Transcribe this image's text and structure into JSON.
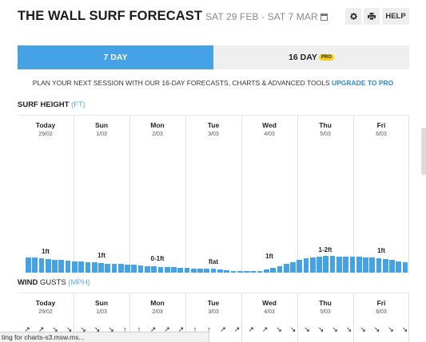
{
  "header": {
    "title": "THE WALL SURF FORECAST",
    "date_range": "SAT 29 FEB - SAT 7 MAR",
    "settings_icon": "gear-icon",
    "print_icon": "printer-icon",
    "help_label": "HELP"
  },
  "tabs": [
    {
      "label": "7 DAY",
      "active": true
    },
    {
      "label": "16 DAY",
      "badge": "PRO",
      "active": false
    }
  ],
  "promo": {
    "text": "PLAN YOUR NEXT SESSION WITH OUR 16-DAY FORECASTS, CHARTS & ADVANCED TOOLS",
    "link": "UPGRADE TO PRO"
  },
  "surf": {
    "title": "SURF HEIGHT",
    "unit": "(FT)",
    "days": [
      {
        "name": "Today",
        "date": "29/02",
        "label": "1ft"
      },
      {
        "name": "Sun",
        "date": "1/03",
        "label": "1ft"
      },
      {
        "name": "Mon",
        "date": "2/03",
        "label": "0-1ft"
      },
      {
        "name": "Tue",
        "date": "3/03",
        "label": "flat"
      },
      {
        "name": "Wed",
        "date": "4/03",
        "label": "1ft"
      },
      {
        "name": "Thu",
        "date": "5/03",
        "label": "1-2ft"
      },
      {
        "name": "Fri",
        "date": "6/03",
        "label": "1ft"
      }
    ],
    "levels": [
      0.32,
      0.32,
      0.3,
      0.28,
      0.27,
      0.26,
      0.25,
      0.24,
      0.23,
      0.22,
      0.21,
      0.2,
      0.19,
      0.18,
      0.18,
      0.17,
      0.16,
      0.15,
      0.14,
      0.13,
      0.12,
      0.12,
      0.11,
      0.1,
      0.1,
      0.09,
      0.08,
      0.08,
      0.08,
      0.06,
      0.05,
      0.04,
      0.03,
      0.03,
      0.02,
      0.04,
      0.07,
      0.1,
      0.14,
      0.18,
      0.22,
      0.26,
      0.3,
      0.32,
      0.34,
      0.35,
      0.35,
      0.34,
      0.34,
      0.33,
      0.33,
      0.32,
      0.31,
      0.3,
      0.28,
      0.26,
      0.24,
      0.22
    ]
  },
  "wind": {
    "title": "WIND",
    "subtitle": "GUSTS",
    "unit": "(MPH)",
    "days": [
      {
        "name": "Today",
        "date": "29/02"
      },
      {
        "name": "Sun",
        "date": "1/03"
      },
      {
        "name": "Mon",
        "date": "2/03"
      },
      {
        "name": "Tue",
        "date": "3/03"
      },
      {
        "name": "Wed",
        "date": "4/03"
      },
      {
        "name": "Thu",
        "date": "5/03"
      },
      {
        "name": "Fri",
        "date": "6/03"
      }
    ],
    "arrows": [
      "↗",
      "↗",
      "↘",
      "↘",
      "↘",
      "↘",
      "↘",
      "↑",
      "↑",
      "↗",
      "↗",
      "↗",
      "↑",
      "↑",
      "↗",
      "↗",
      "↗",
      "↗",
      "↘",
      "↘",
      "↘",
      "↘",
      "↘",
      "↘",
      "↘",
      "↘",
      "↘",
      "↘"
    ]
  },
  "status_text": "ting for charts-s3.msw.ms..."
}
